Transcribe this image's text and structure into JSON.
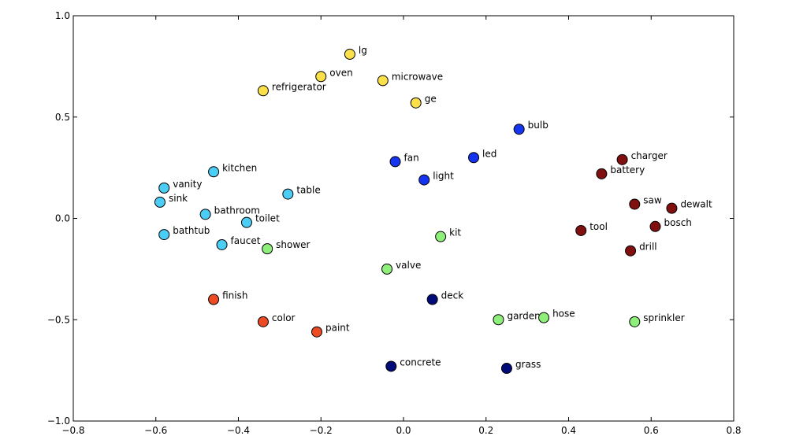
{
  "chart_data": {
    "type": "scatter",
    "title": "",
    "xlabel": "",
    "ylabel": "",
    "xlim": [
      -0.8,
      0.8
    ],
    "ylim": [
      -1.0,
      1.0
    ],
    "xticks": [
      "−0.8",
      "−0.6",
      "−0.4",
      "−0.2",
      "0.0",
      "0.2",
      "0.4",
      "0.6",
      "0.8"
    ],
    "yticks": [
      "−1.0",
      "−0.5",
      "0.0",
      "0.5",
      "1.0"
    ],
    "grid": false,
    "points": [
      {
        "label": "lg",
        "x": -0.13,
        "y": 0.81,
        "color": "#fce04a"
      },
      {
        "label": "oven",
        "x": -0.2,
        "y": 0.7,
        "color": "#fce04a"
      },
      {
        "label": "microwave",
        "x": -0.05,
        "y": 0.68,
        "color": "#fce04a"
      },
      {
        "label": "refrigerator",
        "x": -0.34,
        "y": 0.63,
        "color": "#fce04a"
      },
      {
        "label": "ge",
        "x": 0.03,
        "y": 0.57,
        "color": "#fce04a"
      },
      {
        "label": "bulb",
        "x": 0.28,
        "y": 0.44,
        "color": "#1434f0"
      },
      {
        "label": "led",
        "x": 0.17,
        "y": 0.3,
        "color": "#1434f0"
      },
      {
        "label": "fan",
        "x": -0.02,
        "y": 0.28,
        "color": "#1434f0"
      },
      {
        "label": "light",
        "x": 0.05,
        "y": 0.19,
        "color": "#1434f0"
      },
      {
        "label": "charger",
        "x": 0.53,
        "y": 0.29,
        "color": "#801010"
      },
      {
        "label": "battery",
        "x": 0.48,
        "y": 0.22,
        "color": "#801010"
      },
      {
        "label": "saw",
        "x": 0.56,
        "y": 0.07,
        "color": "#801010"
      },
      {
        "label": "dewalt",
        "x": 0.65,
        "y": 0.05,
        "color": "#801010"
      },
      {
        "label": "tool",
        "x": 0.43,
        "y": -0.06,
        "color": "#801010"
      },
      {
        "label": "bosch",
        "x": 0.61,
        "y": -0.04,
        "color": "#801010"
      },
      {
        "label": "drill",
        "x": 0.55,
        "y": -0.16,
        "color": "#801010"
      },
      {
        "label": "kitchen",
        "x": -0.46,
        "y": 0.23,
        "color": "#4ccdf5"
      },
      {
        "label": "vanity",
        "x": -0.58,
        "y": 0.15,
        "color": "#4ccdf5"
      },
      {
        "label": "table",
        "x": -0.28,
        "y": 0.12,
        "color": "#4ccdf5"
      },
      {
        "label": "sink",
        "x": -0.59,
        "y": 0.08,
        "color": "#4ccdf5"
      },
      {
        "label": "bathroom",
        "x": -0.48,
        "y": 0.02,
        "color": "#4ccdf5"
      },
      {
        "label": "toilet",
        "x": -0.38,
        "y": -0.02,
        "color": "#4ccdf5"
      },
      {
        "label": "bathtub",
        "x": -0.58,
        "y": -0.08,
        "color": "#4ccdf5"
      },
      {
        "label": "faucet",
        "x": -0.44,
        "y": -0.13,
        "color": "#4ccdf5"
      },
      {
        "label": "shower",
        "x": -0.33,
        "y": -0.15,
        "color": "#8ef07a"
      },
      {
        "label": "kit",
        "x": 0.09,
        "y": -0.09,
        "color": "#8ef07a"
      },
      {
        "label": "valve",
        "x": -0.04,
        "y": -0.25,
        "color": "#8ef07a"
      },
      {
        "label": "garden",
        "x": 0.23,
        "y": -0.5,
        "color": "#8ef07a"
      },
      {
        "label": "hose",
        "x": 0.34,
        "y": -0.49,
        "color": "#8ef07a"
      },
      {
        "label": "sprinkler",
        "x": 0.56,
        "y": -0.51,
        "color": "#8ef07a"
      },
      {
        "label": "finish",
        "x": -0.46,
        "y": -0.4,
        "color": "#ec4a22"
      },
      {
        "label": "color",
        "x": -0.34,
        "y": -0.51,
        "color": "#ec4a22"
      },
      {
        "label": "paint",
        "x": -0.21,
        "y": -0.56,
        "color": "#ec4a22"
      },
      {
        "label": "deck",
        "x": 0.07,
        "y": -0.4,
        "color": "#000a78"
      },
      {
        "label": "concrete",
        "x": -0.03,
        "y": -0.73,
        "color": "#000a78"
      },
      {
        "label": "grass",
        "x": 0.25,
        "y": -0.74,
        "color": "#000a78"
      }
    ]
  }
}
